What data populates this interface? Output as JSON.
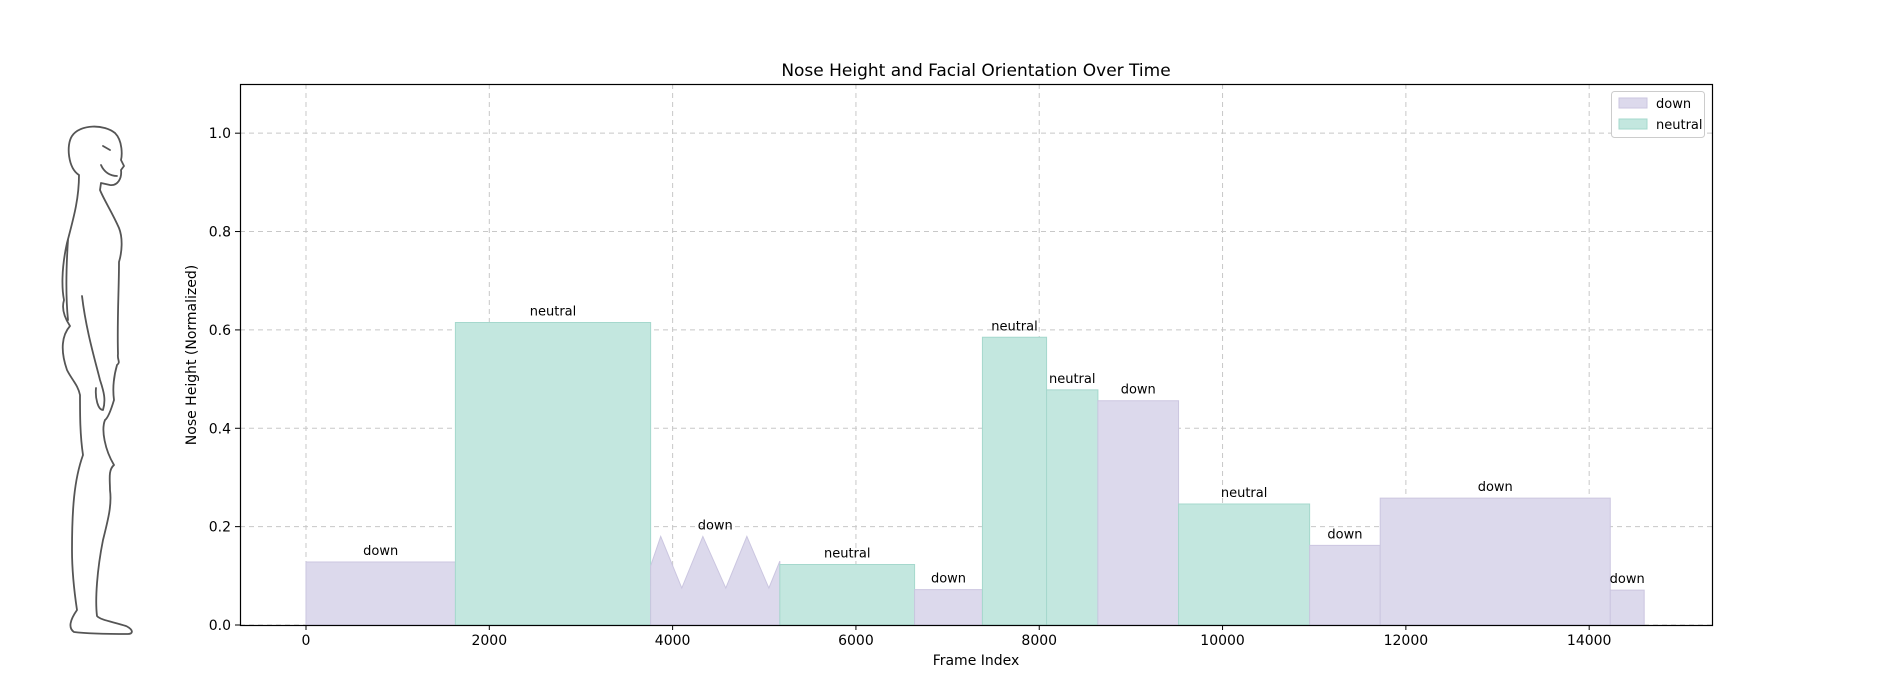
{
  "chart_data": {
    "type": "area",
    "title": "Nose Height and Facial Orientation Over Time",
    "xlabel": "Frame Index",
    "ylabel": "Nose Height (Normalized)",
    "xlim": [
      -720,
      15340
    ],
    "ylim": [
      0,
      1.1
    ],
    "xticks": [
      0,
      2000,
      4000,
      6000,
      8000,
      10000,
      12000,
      14000
    ],
    "yticks": [
      0.0,
      0.2,
      0.4,
      0.6,
      0.8,
      1.0
    ],
    "xtick_labels": [
      "0",
      "2000",
      "4000",
      "6000",
      "8000",
      "10000",
      "12000",
      "14000"
    ],
    "ytick_labels": [
      "0.0",
      "0.2",
      "0.4",
      "0.6",
      "0.8",
      "1.0"
    ],
    "grid": true,
    "legend_position": "top-right",
    "colors": {
      "down": "#dcd9ec",
      "neutral": "#c3e7df",
      "down_edge": "#cbc6e0",
      "neutral_edge": "#a5d8cd"
    },
    "legend": [
      {
        "key": "down",
        "label": "down"
      },
      {
        "key": "neutral",
        "label": "neutral"
      }
    ],
    "segments": [
      {
        "label": "down",
        "category": "down",
        "start": 0,
        "end": 1630,
        "height": 0.128
      },
      {
        "label": "neutral",
        "category": "neutral",
        "start": 1630,
        "end": 3760,
        "height": 0.615
      },
      {
        "label": "down",
        "category": "down",
        "start": 3760,
        "end": 5170,
        "height": 0.18,
        "profile": [
          [
            3760,
            0.12
          ],
          [
            3870,
            0.18
          ],
          [
            4100,
            0.075
          ],
          [
            4330,
            0.18
          ],
          [
            4580,
            0.075
          ],
          [
            4810,
            0.18
          ],
          [
            5050,
            0.075
          ],
          [
            5170,
            0.13
          ]
        ]
      },
      {
        "label": "neutral",
        "category": "neutral",
        "start": 5170,
        "end": 6640,
        "height": 0.123
      },
      {
        "label": "down",
        "category": "down",
        "start": 6640,
        "end": 7380,
        "height": 0.072
      },
      {
        "label": "neutral",
        "category": "neutral",
        "start": 7380,
        "end": 8080,
        "height": 0.585
      },
      {
        "label": "neutral",
        "category": "neutral",
        "start": 8080,
        "end": 8640,
        "height": 0.478
      },
      {
        "label": "down",
        "category": "down",
        "start": 8640,
        "end": 9520,
        "height": 0.456
      },
      {
        "label": "neutral",
        "category": "neutral",
        "start": 9520,
        "end": 10950,
        "height": 0.246
      },
      {
        "label": "down",
        "category": "down",
        "start": 10950,
        "end": 11720,
        "height": 0.162
      },
      {
        "label": "down",
        "category": "down",
        "start": 11720,
        "end": 14230,
        "height": 0.258
      },
      {
        "label": "down",
        "category": "down",
        "start": 14230,
        "end": 14600,
        "height": 0.071
      }
    ]
  }
}
